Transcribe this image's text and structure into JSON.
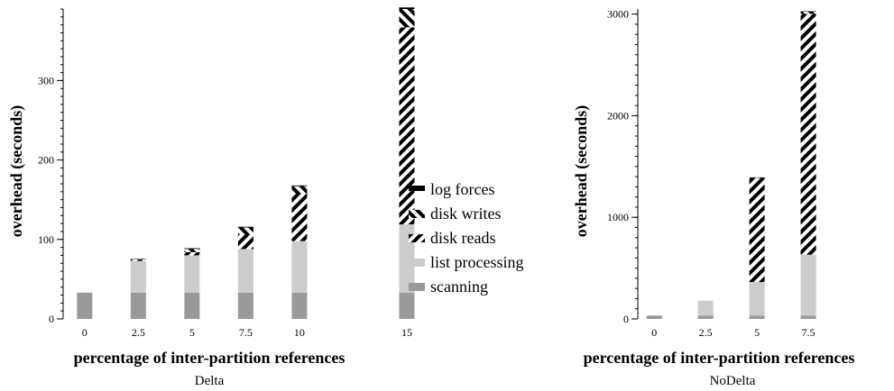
{
  "legend": {
    "placement": "center",
    "items": [
      {
        "key": "log_forces",
        "label": "log forces",
        "pattern": "solid-black"
      },
      {
        "key": "disk_writes",
        "label": "disk writes",
        "pattern": "hatch-backslash"
      },
      {
        "key": "disk_reads",
        "label": "disk reads",
        "pattern": "hatch-slash"
      },
      {
        "key": "list_processing",
        "label": "list processing",
        "color": "#cccccc"
      },
      {
        "key": "scanning",
        "label": "scanning",
        "color": "#999999"
      }
    ]
  },
  "chart_data": [
    {
      "type": "bar",
      "stacked": true,
      "caption": "Delta",
      "xlabel": "percentage of inter-partition references",
      "ylabel": "overhead (seconds)",
      "x_axis_scale": "numeric",
      "x": [
        0,
        2.5,
        5,
        7.5,
        10,
        15
      ],
      "categories": [
        "0",
        "2.5",
        "5",
        "7.5",
        "10",
        "15"
      ],
      "xlim": [
        -1,
        15.8
      ],
      "ylim": [
        0,
        390
      ],
      "yticks": [
        0,
        100,
        200,
        300
      ],
      "grid": false,
      "series": [
        {
          "name": "scanning",
          "key": "scanning",
          "values": [
            33,
            33,
            33,
            33,
            33,
            33
          ]
        },
        {
          "name": "list processing",
          "key": "list_processing",
          "values": [
            0,
            40,
            47,
            55,
            65,
            86
          ]
        },
        {
          "name": "disk reads",
          "key": "disk_reads",
          "values": [
            0,
            1,
            4,
            18,
            60,
            248
          ]
        },
        {
          "name": "disk writes",
          "key": "disk_writes",
          "values": [
            0,
            1,
            4,
            9,
            9,
            23
          ]
        },
        {
          "name": "log forces",
          "key": "log_forces",
          "values": [
            0,
            0.5,
            1,
            1,
            1,
            2
          ]
        }
      ]
    },
    {
      "type": "bar",
      "stacked": true,
      "caption": "NoDelta",
      "xlabel": "percentage of inter-partition references",
      "ylabel": "overhead (seconds)",
      "x_axis_scale": "numeric",
      "x": [
        0,
        2.5,
        5,
        7.5
      ],
      "categories": [
        "0",
        "2.5",
        "5",
        "7.5"
      ],
      "xlim": [
        -0.8,
        8.2
      ],
      "ylim": [
        0,
        3050
      ],
      "yticks": [
        0,
        1000,
        2000,
        3000
      ],
      "grid": false,
      "series": [
        {
          "name": "scanning",
          "key": "scanning",
          "values": [
            33,
            33,
            33,
            33
          ]
        },
        {
          "name": "list processing",
          "key": "list_processing",
          "values": [
            0,
            147,
            330,
            600
          ]
        },
        {
          "name": "disk reads",
          "key": "disk_reads",
          "values": [
            0,
            0,
            1020,
            2370
          ]
        },
        {
          "name": "disk writes",
          "key": "disk_writes",
          "values": [
            0,
            0,
            8,
            20
          ]
        },
        {
          "name": "log forces",
          "key": "log_forces",
          "values": [
            0,
            0,
            2,
            5
          ]
        }
      ]
    }
  ]
}
